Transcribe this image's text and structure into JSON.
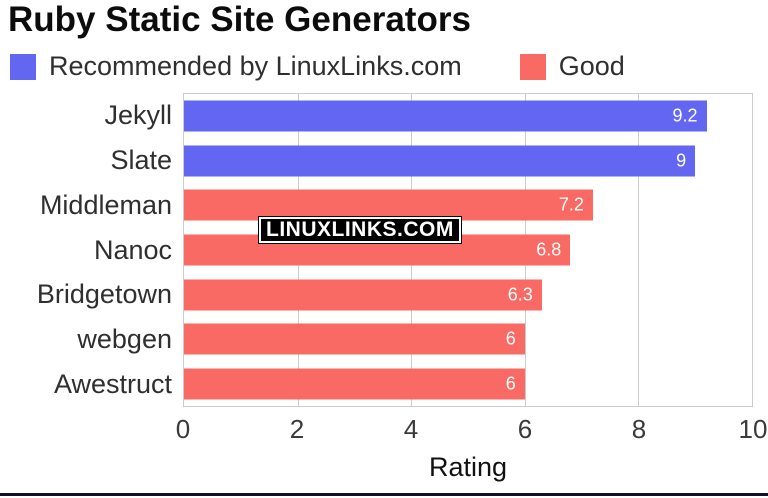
{
  "title": "Ruby Static Site Generators",
  "watermark": "LINUXLINKS.COM",
  "legend": [
    {
      "label": "Recommended by LinuxLinks.com",
      "color": "#6266f1",
      "name": "recommended"
    },
    {
      "label": "Good",
      "color": "#fa6a64",
      "name": "good"
    }
  ],
  "colors": {
    "recommended_blue": "#6266f1",
    "good_red": "#fa6a64",
    "gridline": "#cccccc",
    "bar_value_text": "#ffffff",
    "bottom_strip": "#10102c"
  },
  "chart_data": {
    "type": "bar",
    "orientation": "horizontal",
    "title": "Ruby Static Site Generators",
    "xlabel": "Rating",
    "categories": [
      "Jekyll",
      "Slate",
      "Middleman",
      "Nanoc",
      "Bridgetown",
      "webgen",
      "Awestruct"
    ],
    "values": [
      9.2,
      9,
      7.2,
      6.8,
      6.3,
      6,
      6
    ],
    "value_labels": [
      "9.2",
      "9",
      "7.2",
      "6.8",
      "6.3",
      "6",
      "6"
    ],
    "series_membership": [
      "Recommended by LinuxLinks.com",
      "Recommended by LinuxLinks.com",
      "Good",
      "Good",
      "Good",
      "Good",
      "Good"
    ],
    "bar_colors": [
      "#6266f1",
      "#6266f1",
      "#fa6a64",
      "#fa6a64",
      "#fa6a64",
      "#fa6a64",
      "#fa6a64"
    ],
    "xlim": [
      0,
      10
    ],
    "xticks": [
      0,
      2,
      4,
      6,
      8,
      10
    ],
    "grid": true,
    "legend_position": "top"
  }
}
